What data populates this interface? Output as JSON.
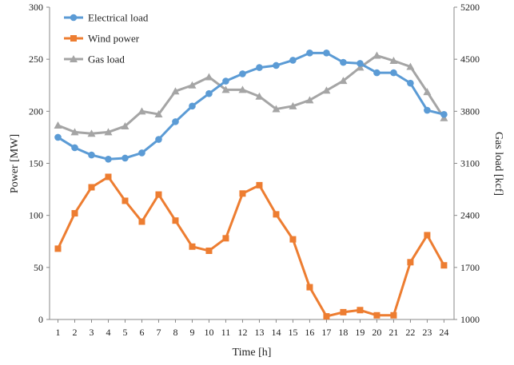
{
  "chart_data": {
    "type": "line",
    "x": [
      1,
      2,
      3,
      4,
      5,
      6,
      7,
      8,
      9,
      10,
      11,
      12,
      13,
      14,
      15,
      16,
      17,
      18,
      19,
      20,
      21,
      22,
      23,
      24
    ],
    "xlabel": "Time [h]",
    "ylabel": "Power [MW]",
    "y2label": "Gas load [kcf]",
    "ylim": [
      0,
      300
    ],
    "yticks": [
      0,
      50,
      100,
      150,
      200,
      250,
      300
    ],
    "y2lim": [
      1000,
      5200
    ],
    "y2ticks": [
      1000,
      1700,
      2400,
      3100,
      3800,
      4500,
      5200
    ],
    "grid": false,
    "legend": "top-left",
    "series": [
      {
        "name": "Electrical load",
        "axis": "left",
        "marker": "circle",
        "color": "#5B9BD5",
        "values": [
          175,
          165,
          158,
          154,
          155,
          160,
          173,
          190,
          205,
          217,
          229,
          236,
          242,
          244,
          249,
          256,
          256,
          247,
          246,
          237,
          237,
          227,
          201,
          197
        ]
      },
      {
        "name": "Wind power",
        "axis": "left",
        "marker": "square",
        "color": "#ED7D31",
        "values": [
          68,
          102,
          127,
          137,
          114,
          94,
          120,
          95,
          70,
          66,
          78,
          121,
          129,
          101,
          77,
          31,
          3,
          7,
          9,
          4,
          4,
          55,
          81,
          52
        ]
      },
      {
        "name": "Gas load",
        "axis": "right",
        "marker": "triangle",
        "color": "#A5A5A5",
        "values": [
          3610,
          3520,
          3500,
          3520,
          3600,
          3800,
          3760,
          4070,
          4150,
          4260,
          4090,
          4090,
          4000,
          3830,
          3870,
          3950,
          4080,
          4210,
          4390,
          4550,
          4480,
          4400,
          4060,
          3710
        ]
      }
    ]
  }
}
